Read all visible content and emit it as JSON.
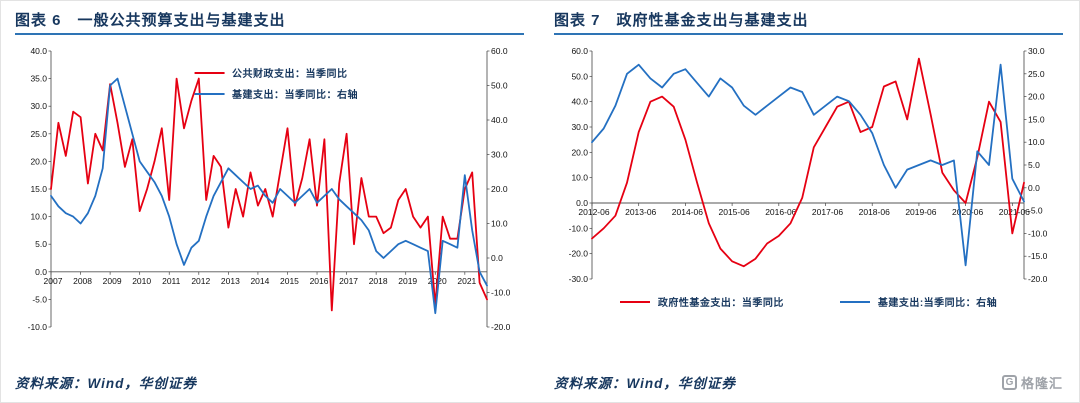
{
  "panels": [
    {
      "title_label": "图表 6",
      "title_text": "一般公共预算支出与基建支出",
      "source": "资料来源：Wind，华创证券"
    },
    {
      "title_label": "图表 7",
      "title_text": "政府性基金支出与基建支出",
      "source": "资料来源：Wind，华创证券"
    }
  ],
  "logo": {
    "icon_letter": "G",
    "text": "格隆汇"
  },
  "theme": {
    "title_color": "#17375e",
    "underline_color": "#2e74b5",
    "source_color": "#17375e",
    "logo_color": "#9fa3a9",
    "red": "#e60012",
    "blue": "#2470c2"
  },
  "chart_data": [
    {
      "type": "line",
      "title": "一般公共预算支出与基建支出",
      "x_start": "2007Q1",
      "x_end": "2021Q4",
      "grid": false,
      "legend_position": "top-center-inside",
      "left_axis": {
        "min": -10,
        "max": 40,
        "ticks": [
          40,
          35,
          30,
          25,
          20,
          15,
          10,
          5,
          0,
          -5,
          -10
        ]
      },
      "right_axis": {
        "min": -20,
        "max": 60,
        "ticks": [
          60,
          50,
          40,
          30,
          20,
          10,
          0,
          -10,
          -20
        ]
      },
      "x_labels": [
        {
          "i": 0,
          "t": "2007"
        },
        {
          "i": 4,
          "t": "2008"
        },
        {
          "i": 8,
          "t": "2009"
        },
        {
          "i": 12,
          "t": "2010"
        },
        {
          "i": 16,
          "t": "2011"
        },
        {
          "i": 20,
          "t": "2012"
        },
        {
          "i": 24,
          "t": "2013"
        },
        {
          "i": 28,
          "t": "2014"
        },
        {
          "i": 32,
          "t": "2015"
        },
        {
          "i": 36,
          "t": "2016"
        },
        {
          "i": 40,
          "t": "2017"
        },
        {
          "i": 44,
          "t": "2018"
        },
        {
          "i": 48,
          "t": "2019"
        },
        {
          "i": 52,
          "t": "2020"
        },
        {
          "i": 56,
          "t": "2021"
        }
      ],
      "series": [
        {
          "name": "公共财政支出：当季同比",
          "axis": "left",
          "color": "#e60012",
          "values": [
            15,
            27,
            21,
            29,
            28,
            16,
            25,
            22,
            34,
            27,
            19,
            24,
            11,
            15,
            20,
            26,
            13,
            35,
            26,
            31,
            35,
            13,
            21,
            19,
            8,
            15,
            10,
            18,
            12,
            15,
            10,
            18,
            26,
            12,
            17,
            24,
            12,
            24,
            -7,
            16,
            25,
            5,
            17,
            10,
            10,
            7,
            8,
            13,
            15,
            10,
            8,
            10,
            -6,
            10,
            6,
            6,
            15,
            18,
            -2,
            -5
          ]
        },
        {
          "name": "基建支出：当季同比：右轴",
          "axis": "right",
          "color": "#2470c2",
          "values": [
            18,
            15,
            13,
            12,
            10,
            13,
            18,
            26,
            50,
            52,
            44,
            36,
            28,
            25,
            22,
            18,
            12,
            4,
            -2,
            3,
            5,
            12,
            18,
            22,
            26,
            24,
            22,
            20,
            21,
            18,
            16,
            20,
            18,
            16,
            18,
            20,
            16,
            18,
            20,
            17,
            15,
            13,
            11,
            8,
            2,
            0,
            2,
            4,
            5,
            4,
            3,
            2,
            -16,
            5,
            4,
            3,
            24,
            8,
            -4,
            -8
          ]
        }
      ]
    },
    {
      "type": "line",
      "title": "政府性基金支出与基建支出",
      "x_start": "2012Q2",
      "x_end": "2021Q3",
      "grid": false,
      "legend_position": "bottom",
      "left_axis": {
        "min": -30,
        "max": 60,
        "ticks": [
          60,
          50,
          40,
          30,
          20,
          10,
          0,
          -10,
          -20,
          -30
        ]
      },
      "right_axis": {
        "min": -20,
        "max": 30,
        "ticks": [
          30,
          25,
          20,
          15,
          10,
          5,
          0,
          -5,
          -10,
          -15,
          -20
        ]
      },
      "x_labels": [
        {
          "i": 0,
          "t": "2012-06"
        },
        {
          "i": 4,
          "t": "2013-06"
        },
        {
          "i": 8,
          "t": "2014-06"
        },
        {
          "i": 12,
          "t": "2015-06"
        },
        {
          "i": 16,
          "t": "2016-06"
        },
        {
          "i": 20,
          "t": "2017-06"
        },
        {
          "i": 24,
          "t": "2018-06"
        },
        {
          "i": 28,
          "t": "2019-06"
        },
        {
          "i": 32,
          "t": "2020-06"
        },
        {
          "i": 36,
          "t": "2021-06"
        }
      ],
      "series": [
        {
          "name": "政府性基金支出：当季同比",
          "axis": "left",
          "color": "#e60012",
          "values": [
            -14,
            -10,
            -5,
            8,
            28,
            40,
            42,
            38,
            25,
            8,
            -8,
            -18,
            -23,
            -25,
            -22,
            -16,
            -13,
            -8,
            2,
            22,
            30,
            38,
            40,
            28,
            30,
            46,
            48,
            33,
            57,
            35,
            12,
            5,
            0,
            18,
            40,
            32,
            -12,
            8
          ]
        },
        {
          "name": "基建支出:当季同比：右轴",
          "axis": "right",
          "color": "#2470c2",
          "values": [
            10,
            13,
            18,
            25,
            27,
            24,
            22,
            25,
            26,
            23,
            20,
            24,
            22,
            18,
            16,
            18,
            20,
            22,
            21,
            16,
            18,
            20,
            19,
            16,
            12,
            5,
            0,
            4,
            5,
            6,
            5,
            6,
            -17,
            8,
            5,
            27,
            2,
            -3
          ]
        }
      ]
    }
  ]
}
